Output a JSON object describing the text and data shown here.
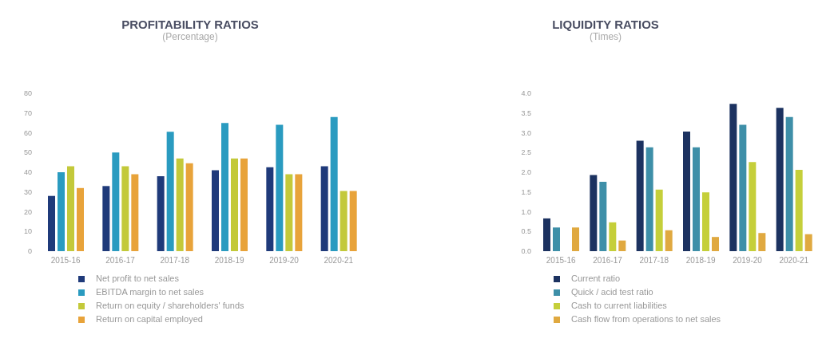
{
  "chart_data": [
    {
      "type": "bar",
      "title": "PROFITABILITY RATIOS",
      "subtitle": "(Percentage)",
      "categories": [
        "2015-16",
        "2016-17",
        "2017-18",
        "2018-19",
        "2019-20",
        "2020-21"
      ],
      "series": [
        {
          "name": "Net profit to net sales",
          "color": "#1f3a7a",
          "values": [
            28,
            33,
            38,
            41,
            42.5,
            43
          ]
        },
        {
          "name": "EBITDA margin to net sales",
          "color": "#2a9bc0",
          "values": [
            40,
            50,
            60.5,
            65,
            64,
            68
          ]
        },
        {
          "name": "Return on equity / shareholders' funds",
          "color": "#c3c93a",
          "values": [
            43,
            43,
            47,
            47,
            39,
            30.5
          ]
        },
        {
          "name": "Return on capital employed",
          "color": "#e8a33a",
          "values": [
            32,
            39,
            44.5,
            47,
            39,
            30.5
          ]
        }
      ],
      "ylim": [
        0,
        80
      ],
      "yticks": [
        0,
        10,
        20,
        30,
        40,
        50,
        60,
        70,
        80
      ],
      "grid": false,
      "legend": "bottom left"
    },
    {
      "type": "bar",
      "title": "LIQUIDITY RATIOS",
      "subtitle": "(Times)",
      "categories": [
        "2015-16",
        "2016-17",
        "2017-18",
        "2018-19",
        "2019-20",
        "2020-21"
      ],
      "series": [
        {
          "name": "Current ratio",
          "color": "#1c3260",
          "values": [
            0.83,
            1.93,
            2.8,
            3.03,
            3.73,
            3.63
          ]
        },
        {
          "name": "Quick / acid test ratio",
          "color": "#3e8fa8",
          "values": [
            0.6,
            1.76,
            2.63,
            2.63,
            3.2,
            3.4
          ]
        },
        {
          "name": "Cash to current liabilities",
          "color": "#c5cf3a",
          "values": [
            0,
            0.73,
            1.56,
            1.49,
            2.26,
            2.06
          ]
        },
        {
          "name": "Cash flow from operations to net sales",
          "color": "#e0a940",
          "values": [
            0.6,
            0.27,
            0.53,
            0.36,
            0.46,
            0.43
          ]
        }
      ],
      "ylim": [
        0,
        4
      ],
      "yticks": [
        {
          "value": 0,
          "label": "0.0"
        },
        0.5,
        {
          "value": 1,
          "label": "1.0"
        },
        1.5,
        {
          "value": 2,
          "label": "2.0"
        },
        2.5,
        {
          "value": 3,
          "label": "3.0"
        },
        3.5,
        {
          "value": 4,
          "label": "4.0"
        }
      ],
      "grid": false,
      "legend": "bottom left"
    }
  ]
}
